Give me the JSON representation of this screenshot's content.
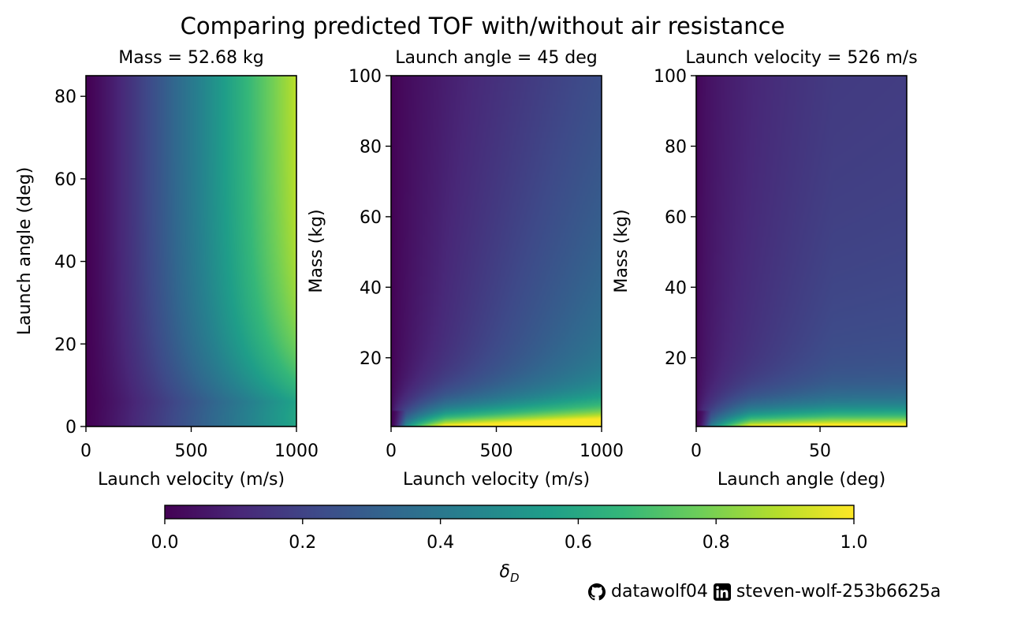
{
  "chart_data": {
    "type": "heatmap",
    "suptitle": "Comparing predicted TOF with/without air resistance",
    "colormap": "viridis",
    "panels": [
      {
        "title": "Mass = 52.68 kg",
        "xlabel": "Launch velocity (m/s)",
        "ylabel": "Launch angle (deg)",
        "xlim": [
          0,
          1000
        ],
        "ylim": [
          0,
          85
        ],
        "xticks": [
          0,
          500,
          1000
        ],
        "yticks": [
          0,
          20,
          40,
          60,
          80
        ],
        "fixed": {
          "mass_kg": 52.68
        }
      },
      {
        "title": "Launch angle = 45 deg",
        "xlabel": "Launch velocity (m/s)",
        "ylabel": "Mass (kg)",
        "xlim": [
          0,
          1000
        ],
        "ylim": [
          0.5,
          100
        ],
        "xticks": [
          0,
          500,
          1000
        ],
        "yticks": [
          20,
          40,
          60,
          80,
          100
        ],
        "fixed": {
          "angle_deg": 45
        }
      },
      {
        "title": "Launch velocity = 526 m/s",
        "xlabel": "Launch angle (deg)",
        "ylabel": "Mass (kg)",
        "xlim": [
          0,
          85
        ],
        "ylim": [
          0.5,
          100
        ],
        "xticks": [
          0,
          50
        ],
        "yticks": [
          20,
          40,
          60,
          80,
          100
        ],
        "fixed": {
          "velocity_ms": 526
        }
      }
    ],
    "colorbar": {
      "label": "δD",
      "label_main": "δ",
      "label_sub": "D",
      "range": [
        0.0,
        1.0
      ],
      "ticks": [
        "0.0",
        "0.2",
        "0.4",
        "0.6",
        "0.8",
        "1.0"
      ],
      "orientation": "horizontal"
    }
  },
  "footer": {
    "github_icon": "github-icon",
    "github_user": "datawolf04",
    "linkedin_icon": "linkedin-icon",
    "linkedin_user": "steven-wolf-253b6625a"
  },
  "colors": {
    "viridis_stops": [
      "#440154",
      "#482878",
      "#3e4a89",
      "#31688e",
      "#26828e",
      "#1f9e89",
      "#35b779",
      "#6ece58",
      "#b5de2b",
      "#fde725"
    ]
  }
}
